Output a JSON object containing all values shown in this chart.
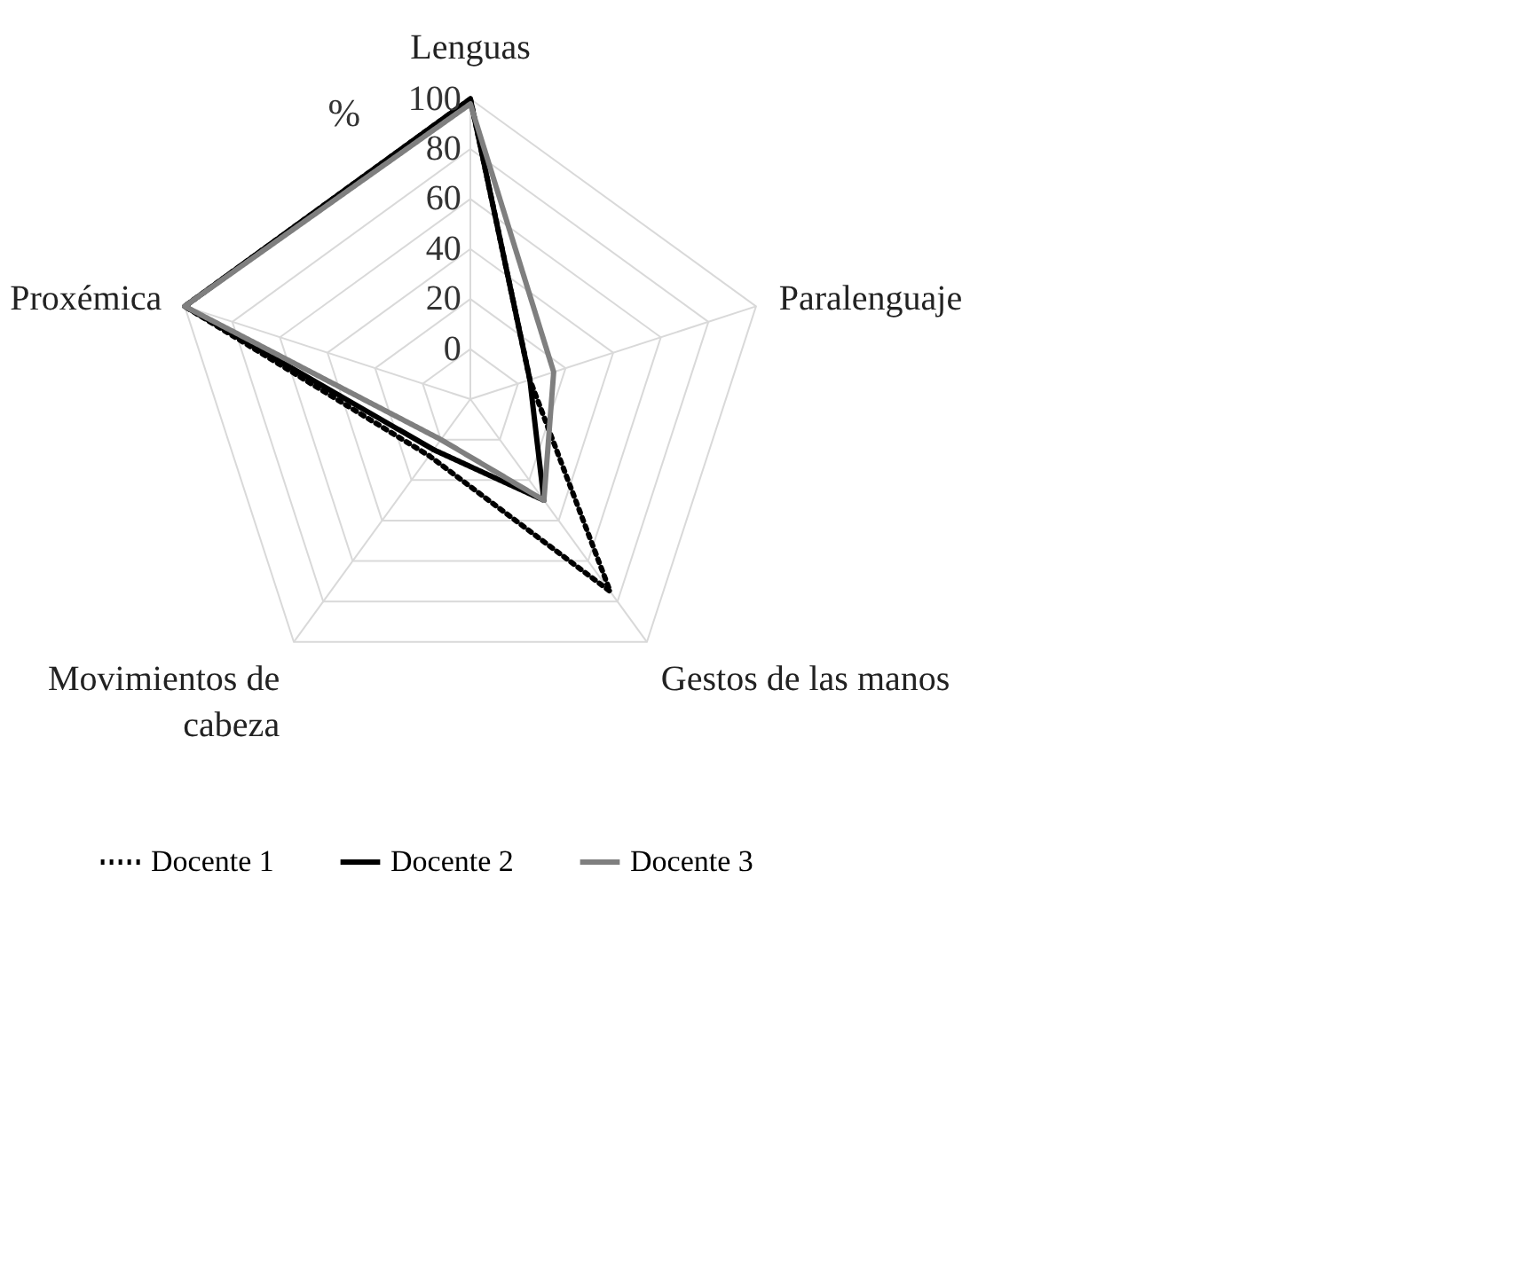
{
  "chart_data": {
    "type": "radar",
    "ylabel": "%",
    "categories": [
      "Lenguas",
      "Paralenguaje",
      "Gestos de las manos",
      "Movimientos de\ncabeza",
      "Proxémica"
    ],
    "ylim": [
      -20,
      100
    ],
    "yticks": [
      0,
      20,
      40,
      60,
      80,
      100
    ],
    "grid": true,
    "legend": "bottom",
    "marker": "none",
    "series": [
      {
        "name": "Docente 1",
        "color": "#000000",
        "line_style": "dotted",
        "values": [
          100,
          5,
          75,
          8,
          100
        ]
      },
      {
        "name": "Docente 2",
        "color": "#000000",
        "line_style": "solid",
        "values": [
          100,
          5,
          30,
          5,
          100
        ]
      },
      {
        "name": "Docente 3",
        "color": "#7f7f7f",
        "line_style": "solid",
        "values": [
          98,
          15,
          30,
          0,
          100
        ]
      }
    ]
  }
}
